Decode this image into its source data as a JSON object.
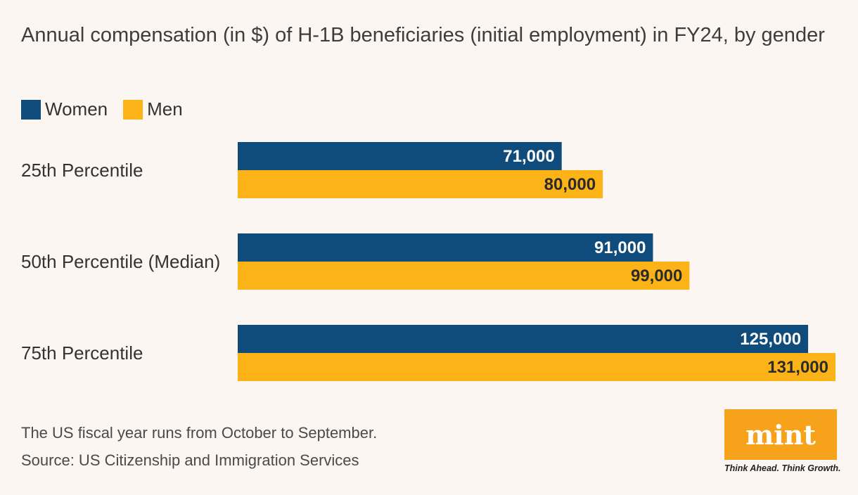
{
  "title": "Annual compensation (in $) of H-1B beneficiaries (initial employment) in FY24, by gender",
  "legend": [
    {
      "label": "Women",
      "color": "#0f4c7c"
    },
    {
      "label": "Men",
      "color": "#fbb318"
    }
  ],
  "chart_data": {
    "type": "bar",
    "orientation": "horizontal",
    "title": "Annual compensation (in $) of H-1B beneficiaries (initial employment) in FY24, by gender",
    "categories": [
      "25th Percentile",
      "50th Percentile (Median)",
      "75th Percentile"
    ],
    "series": [
      {
        "name": "Women",
        "color": "#0f4c7c",
        "label_color": "#ffffff",
        "values": [
          71000,
          91000,
          125000
        ],
        "labels": [
          "71,000",
          "91,000",
          "125,000"
        ]
      },
      {
        "name": "Men",
        "color": "#fbb318",
        "label_color": "#2b2b2b",
        "values": [
          80000,
          99000,
          131000
        ],
        "labels": [
          "80,000",
          "99,000",
          "131,000"
        ]
      }
    ],
    "xlim": [
      0,
      131000
    ],
    "grid": false,
    "legend_position": "top-left"
  },
  "footer": {
    "note": "The US fiscal year runs from October to September.",
    "source": "Source: US Citizenship and Immigration Services"
  },
  "logo": {
    "text": "mint",
    "tagline": "Think Ahead. Think Growth."
  }
}
